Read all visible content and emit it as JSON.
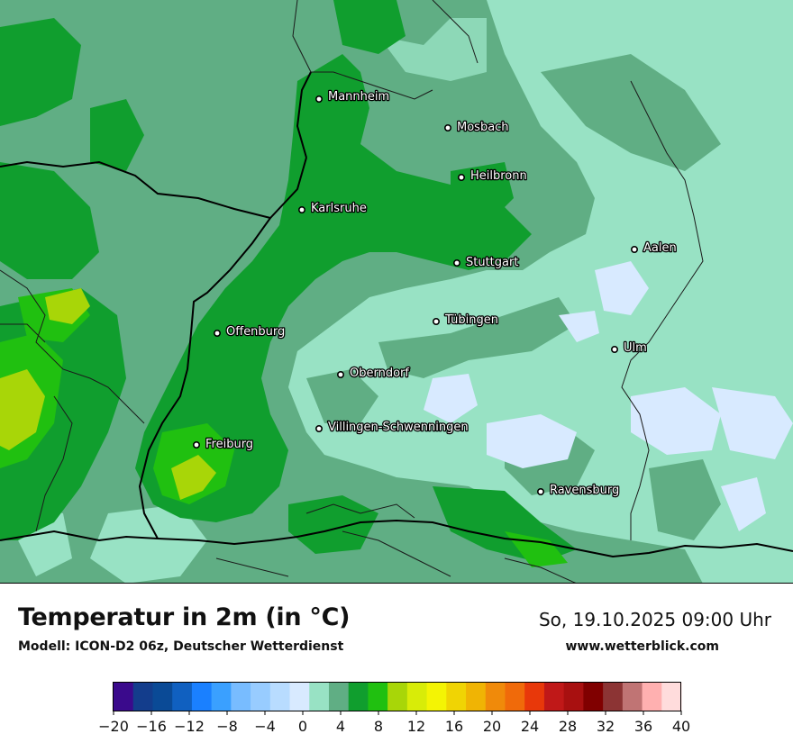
{
  "title": "Temperatur in 2m (in °C)",
  "model": "Modell: ICON-D2 06z, Deutscher Wetterdienst",
  "datetime": "So, 19.10.2025 09:00 Uhr",
  "website": "www.wetterblick.com",
  "legend": {
    "colors": [
      "#3a0a8c",
      "#133d8c",
      "#0a4a96",
      "#1060c0",
      "#1a80ff",
      "#3aa0ff",
      "#78bcff",
      "#98ccff",
      "#b8dcff",
      "#d8eaff",
      "#98e2c4",
      "#60ae84",
      "#109e2e",
      "#20c010",
      "#a8d608",
      "#d8ec08",
      "#f4f404",
      "#f0d404",
      "#f0b404",
      "#f08a0a",
      "#f06a0a",
      "#e8380a",
      "#c01818",
      "#a81010",
      "#800000",
      "#8c3434",
      "#c07474",
      "#ffb0b0",
      "#ffdcdc"
    ],
    "tick_labels": [
      "−20",
      "−16",
      "−12",
      "−8",
      "−4",
      "0",
      "4",
      "8",
      "12",
      "16",
      "20",
      "24",
      "28",
      "32",
      "36",
      "40"
    ]
  },
  "cities": [
    {
      "name": "Mannheim"
    },
    {
      "name": "Mosbach"
    },
    {
      "name": "Heilbronn"
    },
    {
      "name": "Karlsruhe"
    },
    {
      "name": "Aalen"
    },
    {
      "name": "Stuttgart"
    },
    {
      "name": "Offenburg"
    },
    {
      "name": "Tübingen"
    },
    {
      "name": "Ulm"
    },
    {
      "name": "Oberndorf"
    },
    {
      "name": "Villingen-Schwenningen"
    },
    {
      "name": "Freiburg"
    },
    {
      "name": "Ravensburg"
    }
  ]
}
